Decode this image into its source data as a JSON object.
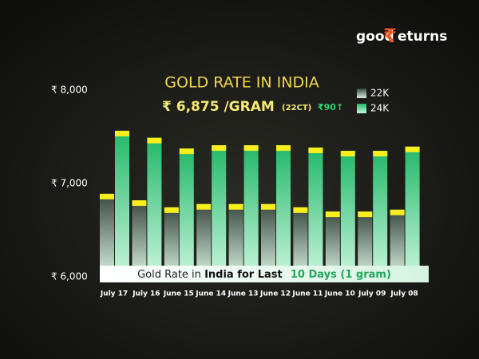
{
  "brand": {
    "logo": [
      "good",
      "₹",
      "eturns"
    ]
  },
  "chart_data": {
    "type": "bar",
    "title": "GOLD RATE IN INDIA",
    "subtitle": "₹ 6,875 /GRAM",
    "subtitle_note": "(22CT)",
    "change": "₹90↑",
    "caption": [
      "Gold Rate in",
      "India for Last",
      "10 Days (1 gram)"
    ],
    "categories": [
      "July 17",
      "July 16",
      "June 15",
      "June 14",
      "June 13",
      "June 12",
      "June 11",
      "June 10",
      "July 09",
      "July 08"
    ],
    "series": [
      {
        "name": "22K",
        "color": "#3b4a40",
        "values": [
          6890,
          6820,
          6745,
          6780,
          6780,
          6780,
          6745,
          6700,
          6700,
          6720
        ]
      },
      {
        "name": "24K",
        "color": "#22b868",
        "values": [
          7565,
          7490,
          7375,
          7410,
          7410,
          7410,
          7385,
          7350,
          7350,
          7395
        ]
      }
    ],
    "cap_color": "#f7ef1c",
    "ylim": [
      6000,
      8000
    ],
    "yticks": [
      {
        "value": 6000,
        "label": "₹ 6,000"
      },
      {
        "value": 7000,
        "label": "₹ 7,000"
      },
      {
        "value": 8000,
        "label": "₹ 8,000"
      }
    ],
    "grid": false
  }
}
